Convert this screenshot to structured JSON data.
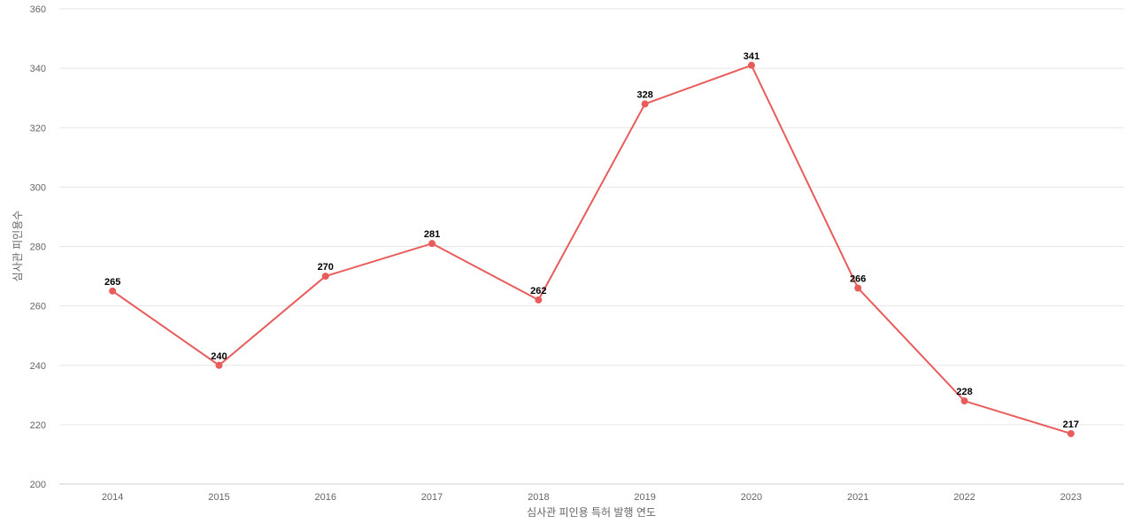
{
  "chart_data": {
    "type": "line",
    "x": [
      "2014",
      "2015",
      "2016",
      "2017",
      "2018",
      "2019",
      "2020",
      "2021",
      "2022",
      "2023"
    ],
    "series": [
      {
        "values": [
          265,
          240,
          270,
          281,
          262,
          328,
          341,
          266,
          228,
          217
        ],
        "color": "#e85c5c"
      }
    ],
    "xlabel": "심사관 피인용 특허 발행 연도",
    "ylabel": "심사관 피인용수",
    "ylim": [
      200,
      360
    ],
    "yticks": [
      "200",
      "220",
      "240",
      "260",
      "280",
      "300",
      "320",
      "340",
      "360"
    ],
    "grid": true,
    "data_labels": true
  }
}
